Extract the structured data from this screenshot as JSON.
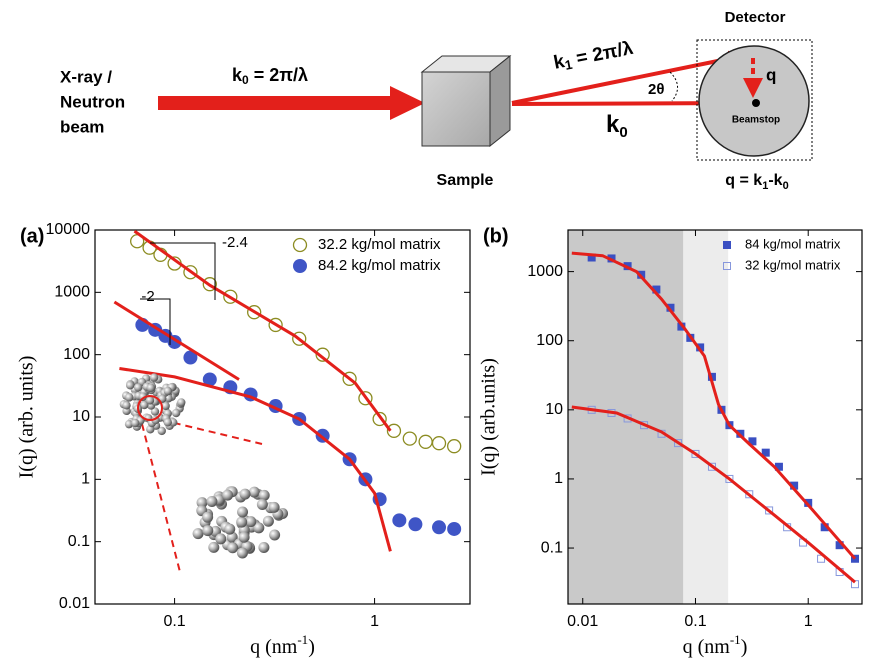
{
  "schematic": {
    "source_label": [
      "X-ray /",
      "Neutron",
      "beam"
    ],
    "incident": {
      "k": "k",
      "sub": "0",
      "rest": " = 2π/λ"
    },
    "scattered": {
      "k": "k",
      "sub": "1",
      "rest": " = 2π/λ"
    },
    "transmitted": {
      "k": "k",
      "sub": "0"
    },
    "angle": "2θ",
    "q": "q",
    "detector": "Detector",
    "beamstop": "Beamstop",
    "sample": "Sample",
    "q_def": {
      "a": "q = k",
      "a_sub": "1",
      "b": "-k",
      "b_sub": "0"
    }
  },
  "chart_data": [
    {
      "type": "scatter",
      "panel": "(a)",
      "xlabel": {
        "text": "q (nm",
        "sup": "-1",
        "tail": ")"
      },
      "ylabel": "I(q) (arb. units)",
      "log_x": true,
      "log_y": true,
      "xlim": [
        0.04,
        3
      ],
      "ylim": [
        0.01,
        10000
      ],
      "xticks": [
        0.1,
        1
      ],
      "yticks": [
        0.01,
        0.1,
        1,
        10,
        100,
        1000,
        10000
      ],
      "legend": "upper right",
      "annotations": [
        {
          "text": "-2.4"
        },
        {
          "text": "-2"
        }
      ],
      "series": [
        {
          "name": "32.2 kg/mol matrix",
          "color": "#8c8c22",
          "marker": "open-circle",
          "x": [
            0.065,
            0.075,
            0.085,
            0.1,
            0.12,
            0.15,
            0.19,
            0.25,
            0.32,
            0.42,
            0.55,
            0.75,
            0.9,
            1.06,
            1.25,
            1.5,
            1.8,
            2.1,
            2.5
          ],
          "values": [
            6600,
            5200,
            4000,
            2900,
            2100,
            1350,
            850,
            480,
            300,
            180,
            100,
            41,
            20,
            9.3,
            6,
            4.5,
            4,
            3.8,
            3.4
          ]
        },
        {
          "name": "84.2 kg/mol matrix",
          "color": "#3f55c6",
          "marker": "circle",
          "x": [
            0.069,
            0.08,
            0.09,
            0.1,
            0.12,
            0.15,
            0.19,
            0.24,
            0.32,
            0.42,
            0.55,
            0.75,
            0.9,
            1.06,
            1.33,
            1.6,
            2.1,
            2.5
          ],
          "values": [
            300,
            250,
            200,
            160,
            90,
            40,
            30,
            23,
            15,
            9.3,
            5,
            2.1,
            1.0,
            0.48,
            0.22,
            0.19,
            0.17,
            0.16
          ]
        },
        {
          "color": "#e3201b",
          "marker": "line",
          "x": [
            0.063,
            0.15,
            0.4,
            0.8,
            1.2
          ],
          "values": [
            9600,
            1300,
            200,
            35,
            6
          ]
        },
        {
          "color": "#e3201b",
          "marker": "line",
          "x": [
            0.05,
            0.21
          ],
          "values": [
            700,
            40
          ]
        },
        {
          "color": "#e3201b",
          "marker": "line",
          "x": [
            0.053,
            0.1,
            0.24,
            0.42,
            0.75,
            1.0,
            1.2
          ],
          "values": [
            60,
            44,
            21,
            9.3,
            2.1,
            0.6,
            0.07
          ]
        }
      ]
    },
    {
      "type": "scatter",
      "panel": "(b)",
      "xlabel": {
        "text": "q (nm",
        "sup": "-1",
        "tail": ")"
      },
      "ylabel": "I(q) (arb.units)",
      "log_x": true,
      "log_y": true,
      "xlim": [
        0.0074,
        3
      ],
      "ylim": [
        0.0155,
        4000
      ],
      "xticks": [
        0.01,
        0.1,
        1
      ],
      "yticks": [
        0.1,
        1,
        10,
        100,
        1000
      ],
      "legend": "upper right",
      "shaded_regions": [
        {
          "x": [
            0.0074,
            0.078
          ],
          "color": "#c9c9c9"
        },
        {
          "x": [
            0.078,
            0.195
          ],
          "color": "#ececec"
        }
      ],
      "series": [
        {
          "name": "84 kg/mol matrix",
          "color": "#3a4fc2",
          "marker": "square",
          "x": [
            0.012,
            0.018,
            0.025,
            0.033,
            0.045,
            0.06,
            0.075,
            0.09,
            0.11,
            0.14,
            0.17,
            0.2,
            0.25,
            0.32,
            0.42,
            0.55,
            0.75,
            1.0,
            1.4,
            1.9,
            2.6
          ],
          "values": [
            1600,
            1550,
            1200,
            900,
            550,
            300,
            160,
            110,
            80,
            30,
            10,
            6,
            4.5,
            3.5,
            2.4,
            1.5,
            0.8,
            0.45,
            0.2,
            0.11,
            0.07
          ]
        },
        {
          "name": "32 kg/mol matrix",
          "color": "#8797dc",
          "marker": "open-square",
          "x": [
            0.012,
            0.018,
            0.025,
            0.035,
            0.05,
            0.07,
            0.1,
            0.14,
            0.2,
            0.3,
            0.45,
            0.65,
            0.9,
            1.3,
            1.9,
            2.6
          ],
          "values": [
            10,
            9,
            7.5,
            6,
            4.5,
            3.3,
            2.3,
            1.5,
            1.0,
            0.6,
            0.35,
            0.2,
            0.12,
            0.07,
            0.045,
            0.03
          ]
        },
        {
          "color": "#e3201b",
          "marker": "line",
          "x": [
            0.008,
            0.015,
            0.03,
            0.05,
            0.08,
            0.12,
            0.16,
            0.2,
            0.3,
            0.5,
            1,
            2.6
          ],
          "values": [
            1850,
            1700,
            1000,
            400,
            150,
            60,
            12,
            6,
            3.2,
            1.5,
            0.42,
            0.07
          ]
        },
        {
          "color": "#e3201b",
          "marker": "line",
          "x": [
            0.008,
            0.02,
            0.05,
            0.1,
            0.2,
            0.5,
            1,
            2.6
          ],
          "values": [
            11,
            9,
            4.8,
            2.3,
            1.0,
            0.3,
            0.12,
            0.032
          ]
        }
      ]
    }
  ]
}
